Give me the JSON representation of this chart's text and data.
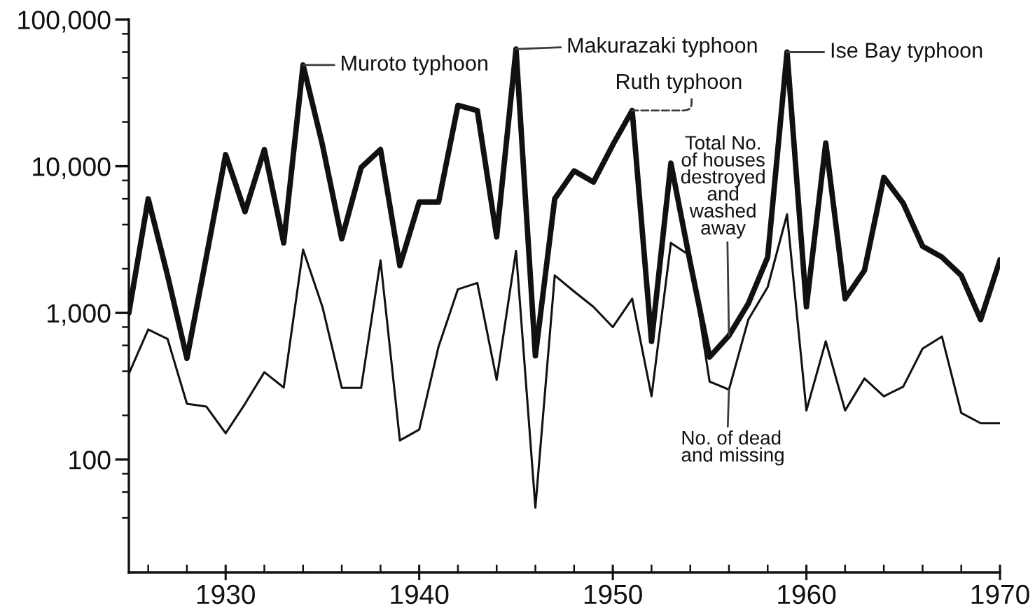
{
  "chart_data": {
    "type": "line",
    "x": [
      1925,
      1926,
      1927,
      1928,
      1929,
      1930,
      1931,
      1932,
      1933,
      1934,
      1935,
      1936,
      1937,
      1938,
      1939,
      1940,
      1941,
      1942,
      1943,
      1944,
      1945,
      1946,
      1947,
      1948,
      1949,
      1950,
      1951,
      1952,
      1953,
      1954,
      1955,
      1956,
      1957,
      1958,
      1959,
      1960,
      1961,
      1962,
      1963,
      1964,
      1965,
      1966,
      1967,
      1968,
      1969,
      1970
    ],
    "series": [
      {
        "name": "Total No.\nof houses\ndestroyed\nand\nwashed\naway",
        "color": "#111111",
        "values": [
          1000,
          6000,
          1800,
          490,
          2400,
          12000,
          4900,
          13000,
          3000,
          49000,
          14000,
          3200,
          9800,
          13000,
          2100,
          5700,
          5700,
          26000,
          24000,
          3300,
          63000,
          510,
          6000,
          9300,
          7800,
          14000,
          24000,
          640,
          10500,
          2200,
          500,
          700,
          1160,
          2400,
          60000,
          1100,
          14400,
          1250,
          1950,
          8400,
          5600,
          2850,
          2400,
          1800,
          900,
          2300
        ]
      },
      {
        "name": "No. of dead\nand missing",
        "color": "#111111",
        "values": [
          385,
          770,
          665,
          240,
          230,
          151,
          240,
          394,
          310,
          2700,
          1100,
          308,
          308,
          2280,
          135,
          160,
          590,
          1450,
          1600,
          350,
          2650,
          47,
          1800,
          1400,
          1100,
          800,
          1250,
          270,
          3000,
          2450,
          340,
          300,
          900,
          1500,
          4700,
          216,
          640,
          216,
          357,
          270,
          314,
          570,
          690,
          208,
          177,
          177
        ]
      }
    ],
    "log": "y",
    "xlim": [
      1925,
      1970
    ],
    "xticks": [
      {
        "value": 1926,
        "label": null
      },
      {
        "value": 1928,
        "label": null
      },
      1930,
      {
        "value": 1932,
        "label": null
      },
      {
        "value": 1934,
        "label": null
      },
      {
        "value": 1936,
        "label": null
      },
      {
        "value": 1938,
        "label": null
      },
      1940,
      {
        "value": 1942,
        "label": null
      },
      {
        "value": 1944,
        "label": null
      },
      {
        "value": 1946,
        "label": null
      },
      {
        "value": 1948,
        "label": null
      },
      1950,
      {
        "value": 1952,
        "label": null
      },
      {
        "value": 1954,
        "label": null
      },
      {
        "value": 1956,
        "label": null
      },
      {
        "value": 1958,
        "label": null
      },
      1960,
      {
        "value": 1962,
        "label": null
      },
      {
        "value": 1964,
        "label": null
      },
      {
        "value": 1966,
        "label": null
      },
      {
        "value": 1968,
        "label": null
      },
      1970
    ],
    "ylim": [
      17,
      100000
    ],
    "yticks": [
      {
        "value": 40,
        "label": null
      },
      {
        "value": 60,
        "label": null
      },
      {
        "value": 80,
        "label": null
      },
      100,
      {
        "value": 200,
        "label": null
      },
      {
        "value": 400,
        "label": null
      },
      {
        "value": 600,
        "label": null
      },
      {
        "value": 800,
        "label": null
      },
      {
        "value": 1000,
        "label": "1,000"
      },
      {
        "value": 2000,
        "label": null
      },
      {
        "value": 4000,
        "label": null
      },
      {
        "value": 6000,
        "label": null
      },
      {
        "value": 8000,
        "label": null
      },
      {
        "value": 10000,
        "label": "10,000"
      },
      {
        "value": 20000,
        "label": null
      },
      {
        "value": 40000,
        "label": null
      },
      {
        "value": 60000,
        "label": null
      },
      {
        "value": 80000,
        "label": null
      },
      {
        "value": 100000,
        "label": "100,000"
      }
    ],
    "annotations": [
      {
        "text": "Muroto typhoon",
        "x": 1934,
        "y": 49000
      },
      {
        "text": "Makurazaki typhoon",
        "x": 1945,
        "y": 63000
      },
      {
        "text": "Ruth typhoon",
        "x": 1951,
        "y": 24000
      },
      {
        "text": "Ise Bay typhoon",
        "x": 1959,
        "y": 60000
      }
    ],
    "grid": false,
    "legend": false,
    "marker": "none",
    "line_style": "solid"
  }
}
